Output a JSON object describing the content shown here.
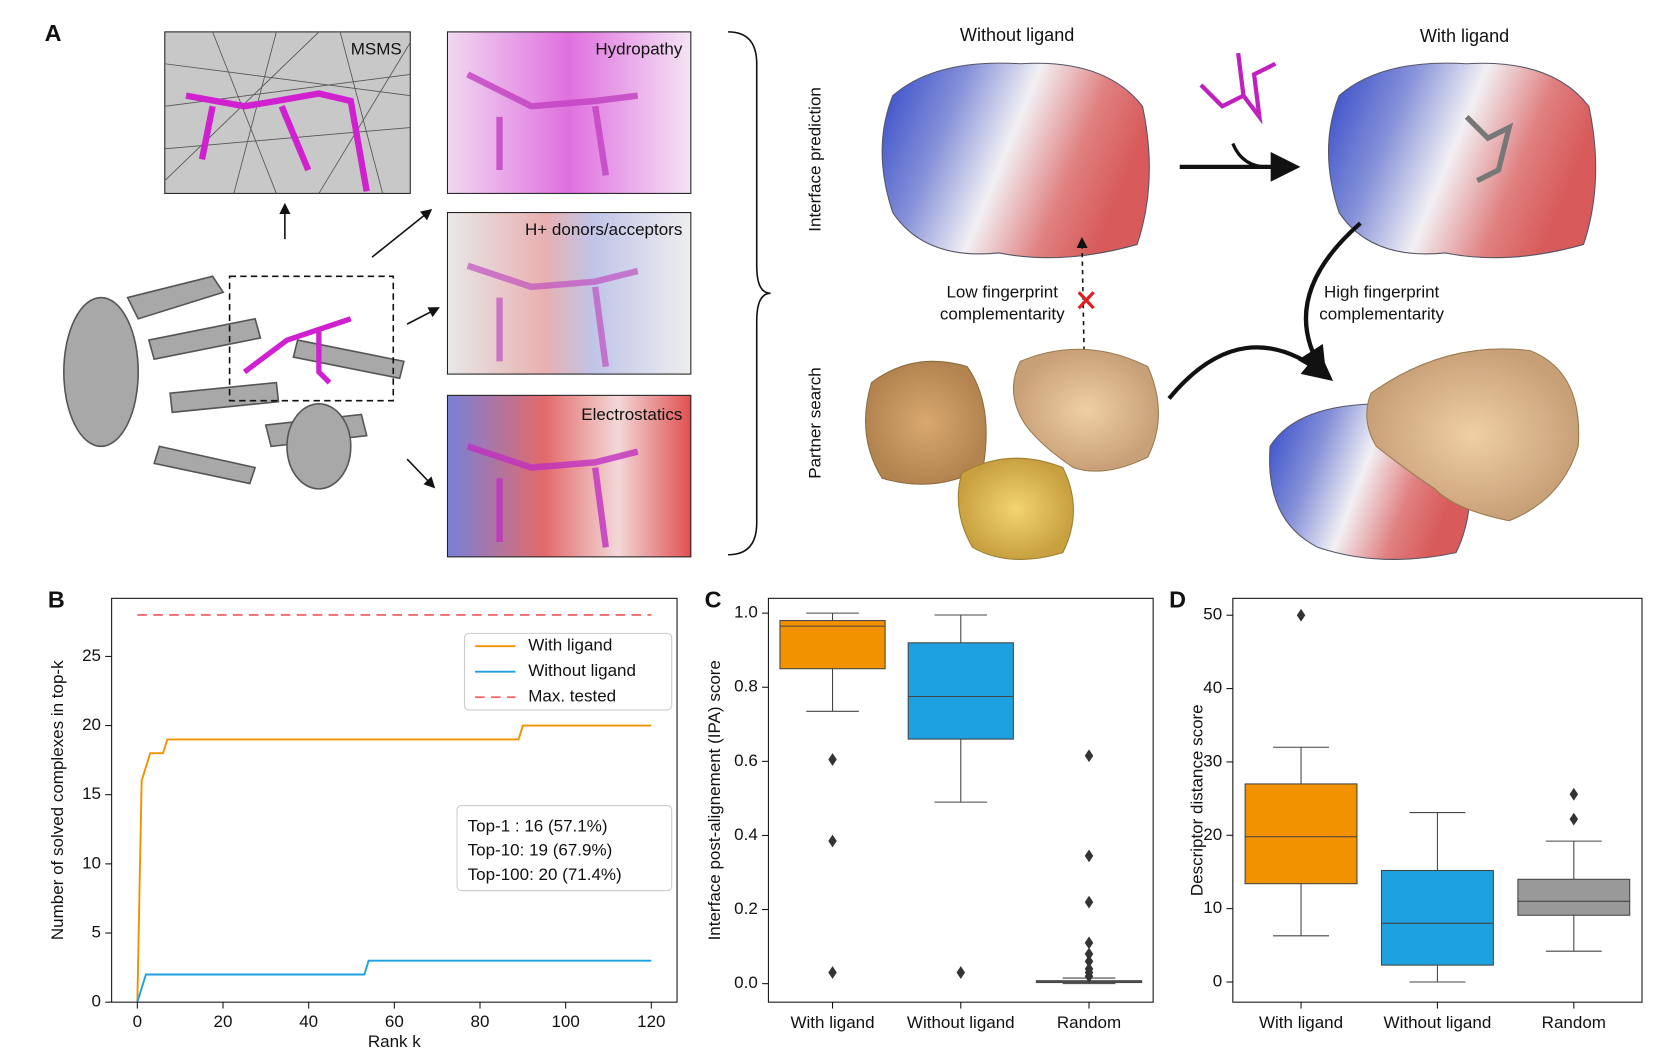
{
  "panel_a": {
    "panel": "A",
    "insets": [
      "MSMS",
      "Hydropathy",
      "H+ donors/acceptors",
      "Electrostatics"
    ],
    "column_titles": [
      "Without ligand",
      "With ligand"
    ],
    "row_titles": [
      "Interface prediction",
      "Partner search"
    ],
    "low_note": [
      "Low fingerprint",
      "complementarity"
    ],
    "high_note": [
      "High fingerprint",
      "complementarity"
    ]
  },
  "chart_data": [
    {
      "type": "line",
      "panel": "B",
      "x_label": "Rank k",
      "y_label": "Number of solved complexes in top-k",
      "xlim": [
        -6,
        126
      ],
      "xticks": [
        0,
        20,
        40,
        60,
        80,
        100,
        120
      ],
      "ylim": [
        0,
        29.2
      ],
      "yticks": [
        0,
        5,
        10,
        15,
        20,
        25
      ],
      "legend": "upper right",
      "series": [
        {
          "name": "With ligand",
          "color": "#f39200",
          "linestyle": "solid",
          "x": [
            0,
            1,
            3,
            6,
            7,
            89,
            90,
            120
          ],
          "values": [
            0,
            16,
            18,
            18,
            19,
            19,
            20,
            20
          ]
        },
        {
          "name": "Without ligand",
          "color": "#1da1e0",
          "linestyle": "solid",
          "x": [
            0,
            2,
            53,
            54,
            120
          ],
          "values": [
            0,
            2,
            2,
            3,
            3
          ]
        },
        {
          "name": "Max. tested",
          "color": "#f26b6b",
          "linestyle": "dashed",
          "x": [
            0,
            120
          ],
          "values": [
            28,
            28
          ]
        }
      ],
      "annotation": [
        "Top-1  : 16 (57.1%)",
        "Top-10: 19 (67.9%)",
        "Top-100: 20 (71.4%)"
      ]
    },
    {
      "type": "box",
      "panel": "C",
      "y_label": "Interface post-alignement (IPA) score",
      "ylim": [
        -0.05,
        1.04
      ],
      "yticks": [
        {
          "value": 0,
          "label": "0.0"
        },
        0.2,
        0.4,
        0.6,
        0.8,
        {
          "value": 1,
          "label": "1.0"
        }
      ],
      "categories": [
        "With ligand",
        "Without ligand",
        "Random"
      ],
      "boxes": [
        {
          "color": "#f39200",
          "min": 0.735,
          "q1": 0.85,
          "median": 0.965,
          "q3": 0.98,
          "max": 1.0,
          "outliers": [
            0.605,
            0.385,
            0.03
          ]
        },
        {
          "color": "#1da1e0",
          "min": 0.49,
          "q1": 0.66,
          "median": 0.775,
          "q3": 0.92,
          "max": 0.995,
          "outliers": [
            0.03
          ]
        },
        {
          "color": "#999999",
          "min": 0,
          "q1": 0.003,
          "median": 0.005,
          "q3": 0.008,
          "max": 0.015,
          "outliers": [
            0.615,
            0.345,
            0.22,
            0.11,
            0.08,
            0.06,
            0.04,
            0.03,
            0.02
          ]
        }
      ]
    },
    {
      "type": "box",
      "panel": "D",
      "y_label": "Descriptor distance score",
      "ylim": [
        -2.75,
        52.3
      ],
      "yticks": [
        0,
        10,
        20,
        30,
        40,
        50
      ],
      "categories": [
        "With ligand",
        "Without ligand",
        "Random"
      ],
      "boxes": [
        {
          "color": "#f39200",
          "min": 6.3,
          "q1": 13.4,
          "median": 19.8,
          "q3": 27,
          "max": 32,
          "outliers": [
            50
          ]
        },
        {
          "color": "#1da1e0",
          "min": 0,
          "q1": 2.3,
          "median": 8,
          "q3": 15.2,
          "max": 23.1,
          "outliers": []
        },
        {
          "color": "#999999",
          "min": 4.2,
          "q1": 9.1,
          "median": 11,
          "q3": 14,
          "max": 19.2,
          "outliers": [
            22.2,
            25.6
          ]
        }
      ]
    }
  ]
}
